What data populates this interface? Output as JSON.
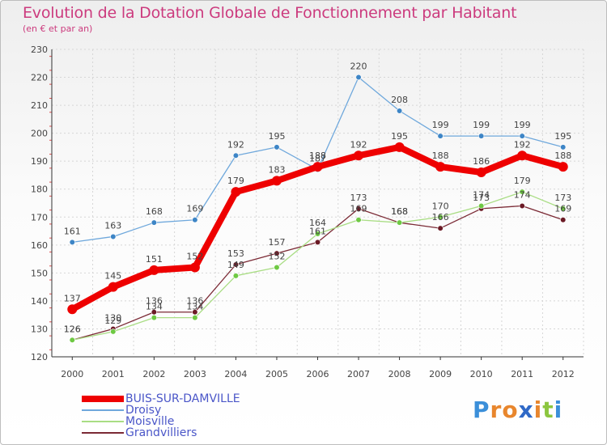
{
  "title": "Evolution de la Dotation Globale de Fonctionnement par Habitant",
  "subtitle": "(en € et par an)",
  "brand": {
    "letters": [
      "P",
      "r",
      "o",
      "x",
      "i",
      "t",
      "i"
    ],
    "colors": [
      "#3b8fd9",
      "#e8862d",
      "#e8862d",
      "#2f69c7",
      "#e8862d",
      "#8cc63f",
      "#3b8fd9"
    ]
  },
  "chart_data": {
    "type": "line",
    "title": "Evolution de la Dotation Globale de Fonctionnement par Habitant",
    "subtitle": "(en € et par an)",
    "x": [
      "2000",
      "2001",
      "2002",
      "2003",
      "2004",
      "2005",
      "2006",
      "2007",
      "2008",
      "2009",
      "2010",
      "2011",
      "2012"
    ],
    "ylim": [
      120,
      230
    ],
    "yticks": [
      120,
      130,
      140,
      150,
      160,
      170,
      180,
      190,
      200,
      210,
      220,
      230
    ],
    "grid": true,
    "legend_position": "bottom-left",
    "series": [
      {
        "name": "BUIS-SUR-DAMVILLE",
        "color": "#ee0000",
        "marker": "#ee0000",
        "emphasis": true,
        "values": [
          137,
          145,
          151,
          152,
          179,
          183,
          188,
          192,
          195,
          188,
          186,
          192,
          188
        ],
        "labels": [
          "137",
          "145",
          "151",
          "152",
          "179",
          "183",
          "188",
          "192",
          "195",
          "188",
          "186",
          "192",
          "188"
        ]
      },
      {
        "name": "Droisy",
        "color": "#6fa8dc",
        "marker": "#3d85c6",
        "emphasis": false,
        "values": [
          161,
          163,
          168,
          169,
          192,
          195,
          187,
          220,
          208,
          199,
          199,
          199,
          195
        ],
        "labels": [
          "161",
          "163",
          "168",
          "169",
          "192",
          "195",
          "187",
          "220",
          "208",
          "199",
          "199",
          "199",
          "195"
        ]
      },
      {
        "name": "Moisville",
        "color": "#a9dd84",
        "marker": "#6ec943",
        "emphasis": false,
        "values": [
          126,
          129,
          134,
          134,
          149,
          152,
          164,
          169,
          168,
          170,
          174,
          179,
          173
        ],
        "labels": [
          "126",
          "129",
          "134",
          "134",
          "149",
          "152",
          "164",
          "169",
          "168",
          "170",
          "174",
          "179",
          "173"
        ]
      },
      {
        "name": "Grandvilliers",
        "color": "#7b2a35",
        "marker": "#6b1a25",
        "emphasis": false,
        "values": [
          126,
          130,
          136,
          136,
          153,
          157,
          161,
          173,
          168,
          166,
          173,
          174,
          169
        ],
        "labels": [
          "126",
          "130",
          "136",
          "136",
          "153",
          "157",
          "161",
          "173",
          "168",
          "166",
          "173",
          "174",
          "169"
        ]
      }
    ]
  }
}
